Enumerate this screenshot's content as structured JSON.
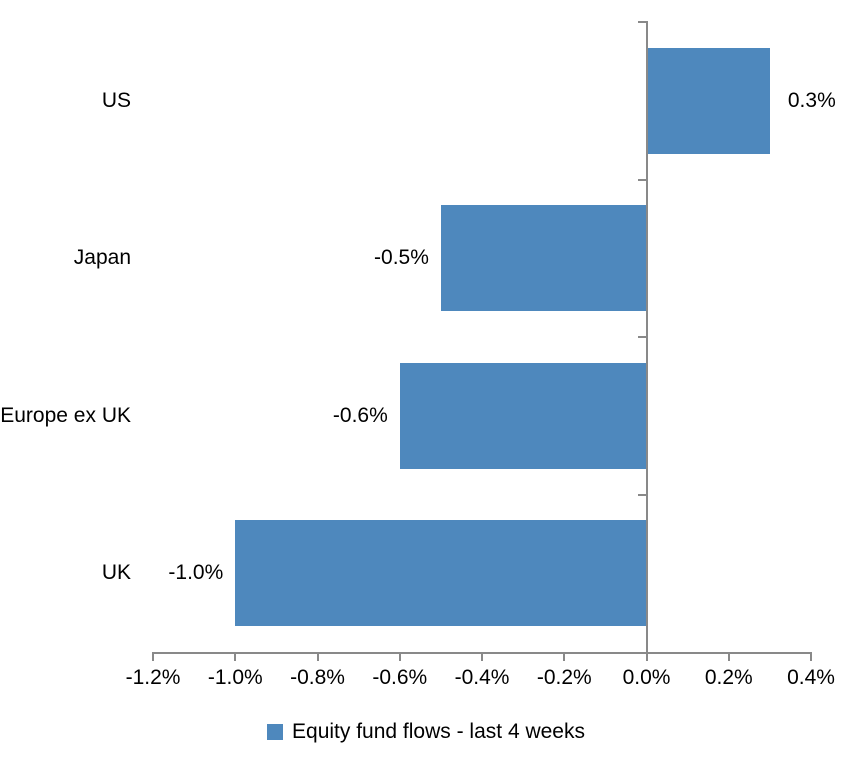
{
  "chart_data": {
    "type": "bar",
    "orientation": "horizontal",
    "title": "",
    "xlabel": "",
    "ylabel": "",
    "categories": [
      "US",
      "Japan",
      "Europe ex UK",
      "UK"
    ],
    "series": [
      {
        "name": "Equity fund flows - last 4 weeks",
        "values": [
          0.3,
          -0.5,
          -0.6,
          -1.0
        ]
      }
    ],
    "data_labels": [
      "0.3%",
      "-0.5%",
      "-0.6%",
      "-1.0%"
    ],
    "x_tick_values": [
      -1.2,
      -1.0,
      -0.8,
      -0.6,
      -0.4,
      -0.2,
      0.0,
      0.2,
      0.4
    ],
    "x_tick_labels": [
      "-1.2%",
      "-1.0%",
      "-0.8%",
      "-0.6%",
      "-0.4%",
      "-0.2%",
      "0.0%",
      "0.2%",
      "0.4%"
    ],
    "xlim": [
      -1.2,
      0.4
    ],
    "grid": false,
    "legend_position": "bottom",
    "legend_entries": [
      "Equity fund flows - last 4 weeks"
    ],
    "bar_color": "#4E88BD",
    "axis_color": "#898989",
    "text_color": "#000000"
  }
}
